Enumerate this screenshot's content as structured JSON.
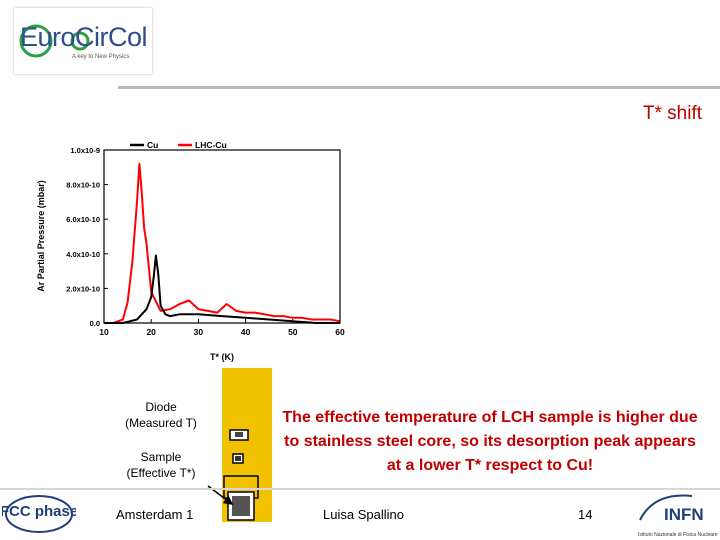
{
  "logo": {
    "name": "EuroCirCol",
    "tagline": "A key to New Physics"
  },
  "slide_title": "T* shift",
  "labels": {
    "diode": "Diode (Measured T)",
    "sample": "Sample (Effective T*)"
  },
  "body_text": "The effective temperature of LCH sample is higher due to stainless steel core, so its desorption peak appears at a lower T* respect to Cu!",
  "footer": {
    "left": "Amsterdam 1",
    "author": "Luisa Spallino",
    "page": "14"
  },
  "footer_logos": {
    "fcc": "FCC phase",
    "infn": "INFN",
    "infn_sub": "Istituto Nazionale di Fisica Nucleare"
  },
  "colors": {
    "title": "#c00000",
    "cu": "#000000",
    "lhc_cu": "#ff0000",
    "holder": "#f2c100"
  },
  "chart_data": {
    "type": "line",
    "xlabel": "T* (K)",
    "ylabel": "Ar Partial Pressure (mbar)",
    "xlim": [
      10,
      60
    ],
    "ylim": [
      0,
      1e-09
    ],
    "x_ticks": [
      10,
      20,
      30,
      40,
      50,
      60
    ],
    "y_ticks": [
      0,
      2e-10,
      4e-10,
      6e-10,
      8e-10,
      1e-09
    ],
    "y_tick_labels": [
      "0.0",
      "2.0x10-10",
      "4.0x10-10",
      "6.0x10-10",
      "8.0x10-10",
      "1.0x10-9"
    ],
    "legend": "top",
    "series": [
      {
        "name": "Cu",
        "color": "#000000",
        "x": [
          10,
          14,
          17,
          18,
          19,
          20,
          20.5,
          21,
          21.5,
          22,
          23,
          24,
          26,
          30,
          35,
          40,
          45,
          50,
          55,
          60
        ],
        "y": [
          0,
          0,
          2e-11,
          5e-11,
          8e-11,
          1.5e-10,
          2.6e-10,
          3.9e-10,
          2.8e-10,
          1e-10,
          5e-11,
          4e-11,
          5e-11,
          5e-11,
          4e-11,
          3e-11,
          2e-11,
          1e-11,
          0,
          0
        ]
      },
      {
        "name": "LHC-Cu",
        "color": "#ff0000",
        "x": [
          10,
          12,
          14,
          15,
          16,
          17,
          17.5,
          18,
          18.5,
          19,
          20,
          22,
          24,
          26,
          28,
          30,
          32,
          34,
          36,
          38,
          40,
          42,
          44,
          46,
          48,
          50,
          52,
          54,
          56,
          58,
          60
        ],
        "y": [
          0,
          0,
          2e-11,
          1.2e-10,
          3.5e-10,
          7e-10,
          9.2e-10,
          7.5e-10,
          5.5e-10,
          4.6e-10,
          1.8e-10,
          7e-11,
          8e-11,
          1.1e-10,
          1.3e-10,
          8e-11,
          7e-11,
          6e-11,
          1.1e-10,
          7e-11,
          6e-11,
          6e-11,
          5e-11,
          4e-11,
          4e-11,
          3e-11,
          3e-11,
          2e-11,
          2e-11,
          2e-11,
          1e-11
        ]
      }
    ]
  }
}
